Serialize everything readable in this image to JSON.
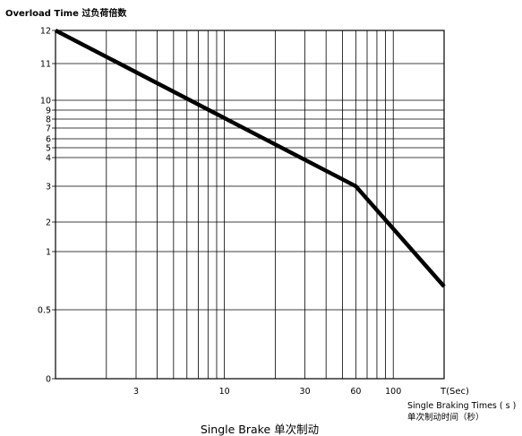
{
  "chart_data": {
    "type": "line",
    "title": "Single Brake  单次制动",
    "ylabel": "Overload Time  过负荷倍数",
    "xlabel": "T(Sec)",
    "xlabel_sub_en": "Single Braking Times ( s )",
    "xlabel_sub_cn": "单次制动时间（秒）",
    "x_scale": "log",
    "grid": true,
    "legend": "none",
    "xlim": [
      1,
      200
    ],
    "y_ticks": [
      {
        "label": "0",
        "value": 0
      },
      {
        "label": "0.5",
        "value": 0.5
      },
      {
        "label": "1",
        "value": 1
      },
      {
        "label": "2",
        "value": 2
      },
      {
        "label": "3",
        "value": 3
      },
      {
        "label": "4",
        "value": 4
      },
      {
        "label": "5",
        "value": 5
      },
      {
        "label": "6",
        "value": 6
      },
      {
        "label": "7",
        "value": 7
      },
      {
        "label": "8",
        "value": 8
      },
      {
        "label": "9",
        "value": 9
      },
      {
        "label": "10",
        "value": 10
      },
      {
        "label": "11",
        "value": 11
      },
      {
        "label": "12",
        "value": 12
      }
    ],
    "x_ticks": [
      {
        "label": "3",
        "value": 3
      },
      {
        "label": "10",
        "value": 10
      },
      {
        "label": "30",
        "value": 30
      },
      {
        "label": "60",
        "value": 60
      },
      {
        "label": "100",
        "value": 100
      }
    ],
    "x_grid_values": [
      1,
      2,
      3,
      4,
      5,
      6,
      7,
      8,
      9,
      10,
      20,
      30,
      40,
      50,
      60,
      70,
      80,
      90,
      100,
      200
    ],
    "series": [
      {
        "color": "#000000",
        "points": [
          {
            "x": 1,
            "y": 12
          },
          {
            "x": 60,
            "y": 3
          },
          {
            "x": 200,
            "y": 0.7
          }
        ]
      }
    ]
  }
}
